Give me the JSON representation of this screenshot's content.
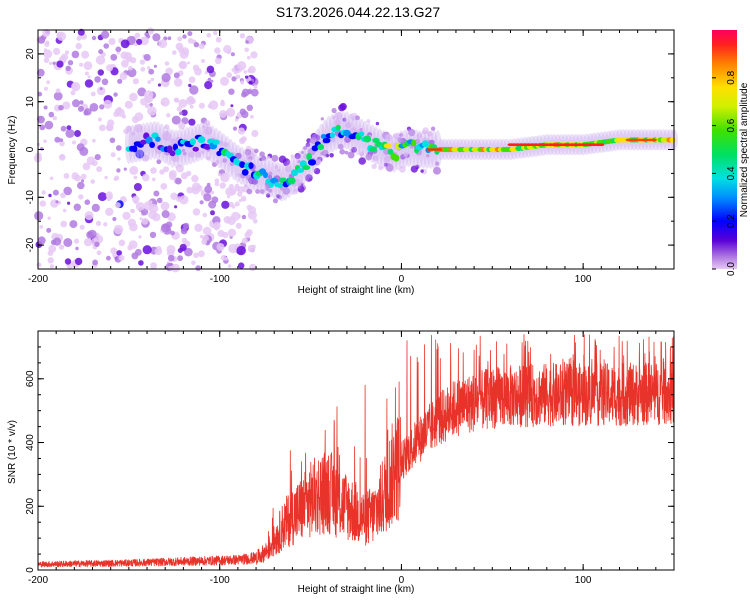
{
  "title": "S173.2026.044.22.13.G27",
  "chart_data": [
    {
      "type": "heatmap",
      "xlabel": "Height of straight line (km)",
      "ylabel": "Frequency (Hz)",
      "xlim": [
        -200,
        150
      ],
      "ylim": [
        -25,
        25
      ],
      "xticks": [
        -200,
        -100,
        0,
        100
      ],
      "yticks": [
        -20,
        -10,
        0,
        10,
        20
      ],
      "tick_labels_x": [
        "-200",
        "-100",
        "0",
        "100"
      ],
      "tick_labels_y": [
        "-20",
        "-10",
        "0",
        "10",
        "20"
      ],
      "colorbar": {
        "label": "Normalized spectral amplitude",
        "range": [
          0,
          1
        ],
        "ticks": [
          0,
          0.2,
          0.4,
          0.6,
          0.8
        ],
        "tick_labels": [
          "0.0",
          "0.2",
          "0.4",
          "0.6",
          "0.8"
        ]
      },
      "ridge": {
        "x": [
          -150,
          -135,
          -125,
          -115,
          -108,
          -100,
          -90,
          -80,
          -72,
          -65,
          -58,
          -50,
          -45,
          -40,
          -35,
          -30,
          -25,
          -20,
          -15,
          -10,
          -5,
          0,
          5,
          10,
          15,
          20,
          40,
          60,
          80,
          100,
          120,
          140,
          150
        ],
        "y": [
          1,
          2,
          0,
          1,
          2,
          0,
          -3,
          -5,
          -6,
          -7,
          -5,
          -2,
          1,
          3,
          4,
          4,
          3,
          2,
          1,
          0,
          -1,
          0,
          0.5,
          0,
          0,
          0,
          0,
          0,
          1,
          1,
          2,
          2,
          2
        ]
      }
    },
    {
      "type": "line",
      "xlabel": "Height of straight line (km)",
      "ylabel": "SNR (10 * v/v)",
      "xlim": [
        -200,
        150
      ],
      "ylim": [
        0,
        750
      ],
      "xticks": [
        -200,
        -100,
        0,
        100
      ],
      "yticks": [
        0,
        200,
        400,
        600
      ],
      "tick_labels_x": [
        "-200",
        "-100",
        "0",
        "100"
      ],
      "tick_labels_y": [
        "0",
        "200",
        "400",
        "600"
      ],
      "color": "#e8332a",
      "envelope": {
        "x": [
          -200,
          -150,
          -100,
          -90,
          -80,
          -75,
          -70,
          -65,
          -60,
          -55,
          -50,
          -45,
          -40,
          -35,
          -30,
          -25,
          -20,
          -15,
          -10,
          -5,
          0,
          5,
          10,
          15,
          20,
          25,
          30,
          35,
          40,
          50,
          60,
          80,
          100,
          120,
          150
        ],
        "y": [
          18,
          22,
          30,
          32,
          38,
          55,
          90,
          140,
          170,
          190,
          220,
          240,
          250,
          215,
          200,
          180,
          160,
          175,
          230,
          300,
          340,
          380,
          410,
          440,
          470,
          490,
          510,
          520,
          525,
          540,
          545,
          550,
          550,
          550,
          555
        ]
      },
      "spikes": [
        {
          "x": -55,
          "y": 340
        },
        {
          "x": -37,
          "y": 470
        },
        {
          "x": -20,
          "y": 580
        },
        {
          "x": 3,
          "y": 720
        },
        {
          "x": 20,
          "y": 710
        },
        {
          "x": 40,
          "y": 690
        }
      ],
      "peak_range": [
        650,
        740
      ]
    }
  ]
}
